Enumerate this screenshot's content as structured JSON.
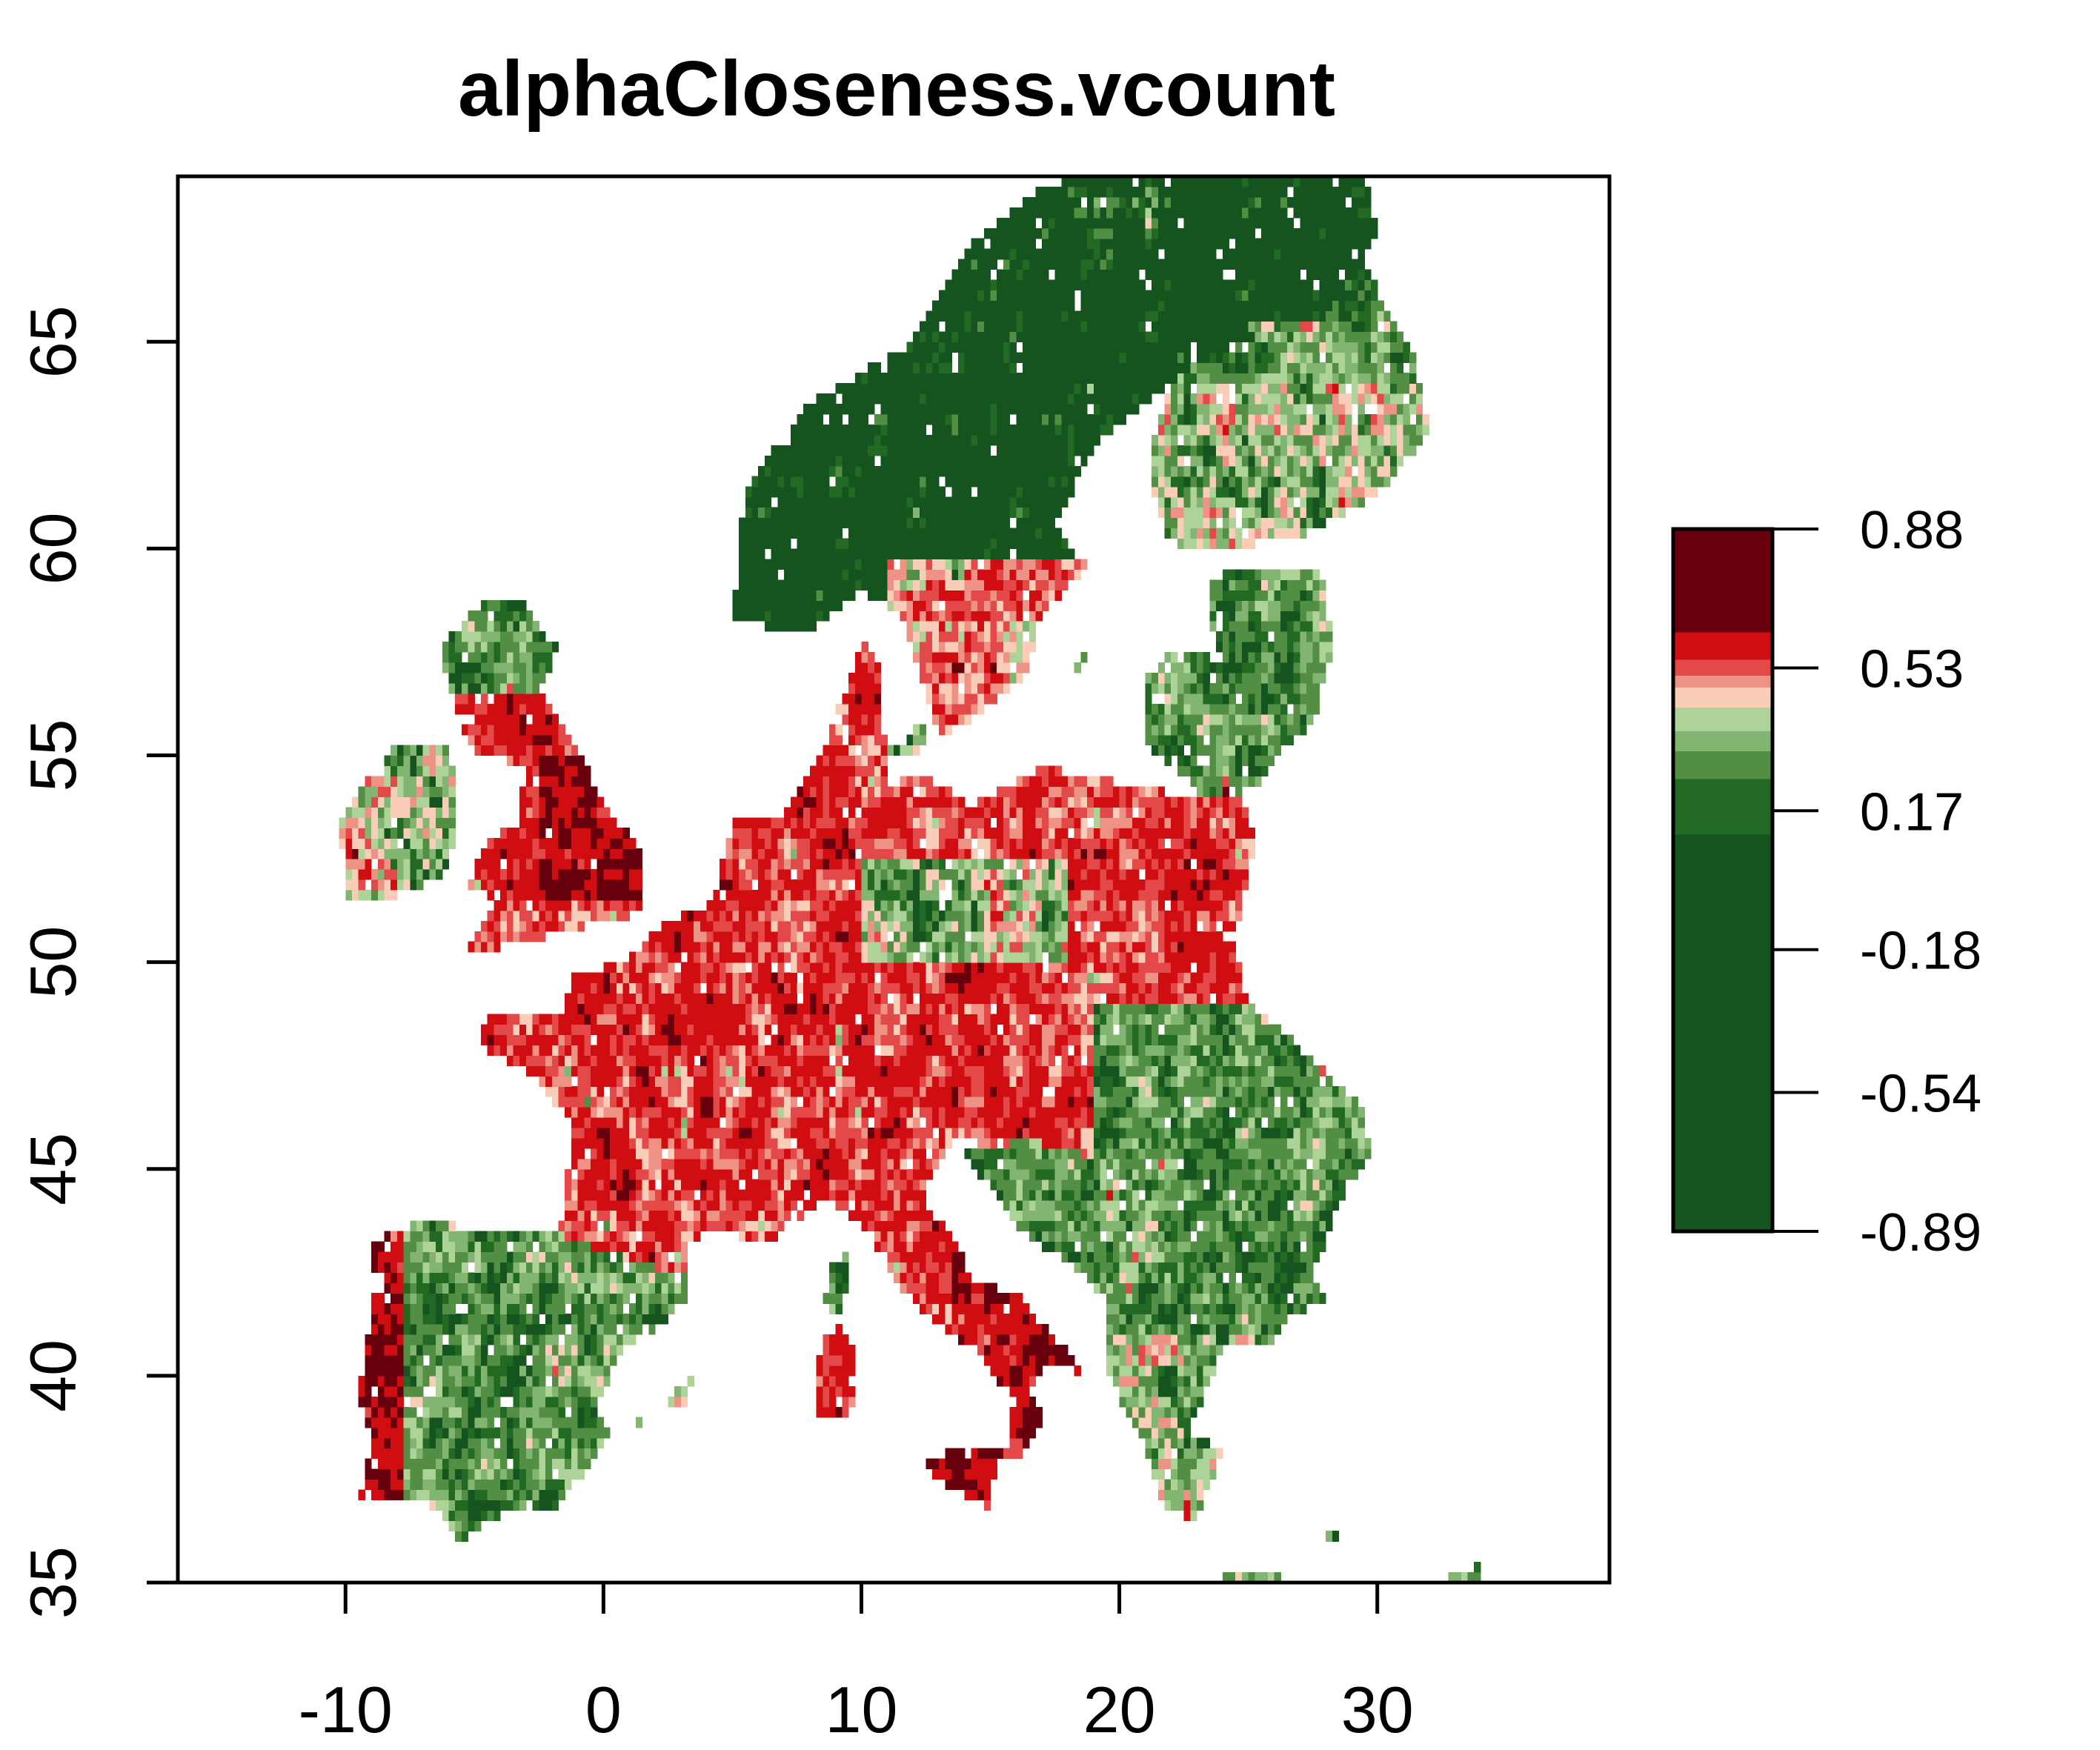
{
  "title": "alphaCloseness.vcount",
  "map": {
    "extent": {
      "lon": [
        -16.5,
        39.0
      ],
      "lat": [
        35.0,
        69.0
      ]
    },
    "colors": {
      "dark_green": "#16541F",
      "green": "#226A24",
      "mid_green": "#528F45",
      "light_green": "#82B572",
      "pale_green": "#ADD398",
      "pale_pink": "#F9CDB7",
      "salmon": "#EE9286",
      "light_red": "#E34948",
      "red": "#D00E12",
      "dark_red": "#67000C"
    }
  },
  "chart_data": {
    "type": "heatmap",
    "title": "alphaCloseness.vcount",
    "x_ticks": [
      "-10",
      "0",
      "10",
      "20",
      "30"
    ],
    "y_ticks": [
      "35",
      "40",
      "45",
      "50",
      "55",
      "60",
      "65"
    ],
    "xlim": [
      -16.5,
      39.0
    ],
    "ylim": [
      35.0,
      69.0
    ],
    "colorbar": {
      "range": [
        -0.89,
        0.88
      ],
      "labels": [
        "0.88",
        "0.53",
        "0.17",
        "-0.18",
        "-0.54",
        "-0.89"
      ],
      "bins": [
        {
          "from": 0.62,
          "to": 0.88,
          "color": "#67000C"
        },
        {
          "from": 0.55,
          "to": 0.62,
          "color": "#D00E12"
        },
        {
          "from": 0.51,
          "to": 0.55,
          "color": "#E34948"
        },
        {
          "from": 0.48,
          "to": 0.51,
          "color": "#EE9286"
        },
        {
          "from": 0.43,
          "to": 0.48,
          "color": "#F9CDB7"
        },
        {
          "from": 0.37,
          "to": 0.43,
          "color": "#ADD398"
        },
        {
          "from": 0.32,
          "to": 0.37,
          "color": "#82B572"
        },
        {
          "from": 0.25,
          "to": 0.32,
          "color": "#528F45"
        },
        {
          "from": 0.11,
          "to": 0.25,
          "color": "#226A24"
        },
        {
          "from": -0.89,
          "to": 0.11,
          "color": "#16541F"
        }
      ]
    },
    "regions": [
      {
        "name": "Scandinavia",
        "tone": "green"
      },
      {
        "name": "Finland",
        "tone": "mixed"
      },
      {
        "name": "Great Britain",
        "tone": "red"
      },
      {
        "name": "Ireland",
        "tone": "mixed"
      },
      {
        "name": "France",
        "tone": "red"
      },
      {
        "name": "Iberia",
        "tone": "green"
      },
      {
        "name": "Central Europe",
        "tone": "red"
      },
      {
        "name": "Italy",
        "tone": "dark_red"
      },
      {
        "name": "Balkans",
        "tone": "green"
      },
      {
        "name": "Eastern Europe",
        "tone": "green"
      }
    ]
  }
}
